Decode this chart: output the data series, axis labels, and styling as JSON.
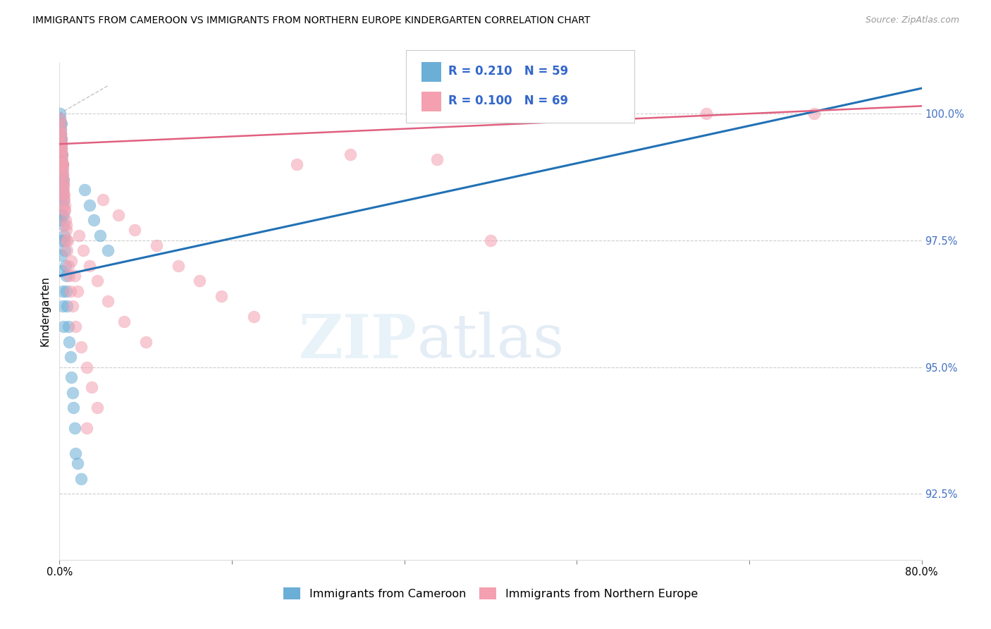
{
  "title": "IMMIGRANTS FROM CAMEROON VS IMMIGRANTS FROM NORTHERN EUROPE KINDERGARTEN CORRELATION CHART",
  "source": "Source: ZipAtlas.com",
  "ylabel": "Kindergarten",
  "R1": 0.21,
  "N1": 59,
  "R2": 0.1,
  "N2": 69,
  "color_blue": "#6baed6",
  "color_blue_line": "#2171b5",
  "color_pink": "#f4a0b0",
  "color_pink_line": "#e06080",
  "legend_label1": "Immigrants from Cameroon",
  "legend_label2": "Immigrants from Northern Europe",
  "ymin": 91.2,
  "ymax": 101.0,
  "xmin": 0.0,
  "xmax": 80.0,
  "yticks": [
    92.5,
    95.0,
    97.5,
    100.0
  ],
  "ytick_labels": [
    "92.5%",
    "95.0%",
    "97.5%",
    "100.0%"
  ],
  "blue_trend_x0": 0.0,
  "blue_trend_y0": 96.8,
  "blue_trend_x1": 80.0,
  "blue_trend_y1": 100.5,
  "pink_trend_x0": 0.0,
  "pink_trend_y0": 99.4,
  "pink_trend_x1": 80.0,
  "pink_trend_y1": 100.15,
  "dash_x0": 0.0,
  "dash_y0": 100.0,
  "dash_x1": 4.5,
  "dash_y1": 100.55,
  "blue_x": [
    0.05,
    0.07,
    0.08,
    0.1,
    0.1,
    0.12,
    0.13,
    0.15,
    0.15,
    0.17,
    0.18,
    0.2,
    0.2,
    0.22,
    0.23,
    0.25,
    0.25,
    0.27,
    0.28,
    0.3,
    0.3,
    0.32,
    0.33,
    0.35,
    0.35,
    0.37,
    0.4,
    0.42,
    0.45,
    0.5,
    0.55,
    0.6,
    0.65,
    0.7,
    0.8,
    0.9,
    1.0,
    1.1,
    1.2,
    1.3,
    1.4,
    0.1,
    0.15,
    0.18,
    0.22,
    0.28,
    0.32,
    0.38,
    1.5,
    1.7,
    2.0,
    2.3,
    2.8,
    3.2,
    3.8,
    4.5,
    0.08,
    0.12,
    0.2
  ],
  "blue_y": [
    99.9,
    100.0,
    99.8,
    99.7,
    99.5,
    99.6,
    99.4,
    99.3,
    99.8,
    99.2,
    99.5,
    99.1,
    99.4,
    99.0,
    98.8,
    98.9,
    99.2,
    98.7,
    98.5,
    98.6,
    99.0,
    98.4,
    98.2,
    98.3,
    98.7,
    98.0,
    97.8,
    97.6,
    97.5,
    97.3,
    97.0,
    96.8,
    96.5,
    96.2,
    95.8,
    95.5,
    95.2,
    94.8,
    94.5,
    94.2,
    93.8,
    97.9,
    97.5,
    97.2,
    96.9,
    96.5,
    96.2,
    95.8,
    93.3,
    93.1,
    92.8,
    98.5,
    98.2,
    97.9,
    97.6,
    97.3,
    99.6,
    99.0,
    98.0
  ],
  "pink_x": [
    0.05,
    0.08,
    0.1,
    0.12,
    0.15,
    0.17,
    0.2,
    0.22,
    0.25,
    0.28,
    0.3,
    0.33,
    0.35,
    0.38,
    0.4,
    0.43,
    0.45,
    0.48,
    0.5,
    0.55,
    0.6,
    0.65,
    0.7,
    0.8,
    0.9,
    1.0,
    1.2,
    1.5,
    2.0,
    2.5,
    3.0,
    3.5,
    0.15,
    0.2,
    0.25,
    0.3,
    0.35,
    0.4,
    0.1,
    0.18,
    0.28,
    40.0,
    4.0,
    5.5,
    7.0,
    9.0,
    11.0,
    13.0,
    15.0,
    18.0,
    22.0,
    27.0,
    35.0,
    60.0,
    70.0,
    1.8,
    2.2,
    2.8,
    3.5,
    4.5,
    6.0,
    8.0,
    0.45,
    0.6,
    0.75,
    1.1,
    1.4,
    1.7,
    2.5
  ],
  "pink_y": [
    99.9,
    99.8,
    99.7,
    99.6,
    99.5,
    99.4,
    99.3,
    99.2,
    99.1,
    99.0,
    98.9,
    98.8,
    98.7,
    98.6,
    98.5,
    98.4,
    98.3,
    98.2,
    98.1,
    97.9,
    97.7,
    97.5,
    97.3,
    97.0,
    96.8,
    96.5,
    96.2,
    95.8,
    95.4,
    95.0,
    94.6,
    94.2,
    99.4,
    99.2,
    99.0,
    98.8,
    98.6,
    98.4,
    99.6,
    99.3,
    99.0,
    97.5,
    98.3,
    98.0,
    97.7,
    97.4,
    97.0,
    96.7,
    96.4,
    96.0,
    99.0,
    99.2,
    99.1,
    100.0,
    100.0,
    97.6,
    97.3,
    97.0,
    96.7,
    96.3,
    95.9,
    95.5,
    98.1,
    97.8,
    97.5,
    97.1,
    96.8,
    96.5,
    93.8
  ]
}
